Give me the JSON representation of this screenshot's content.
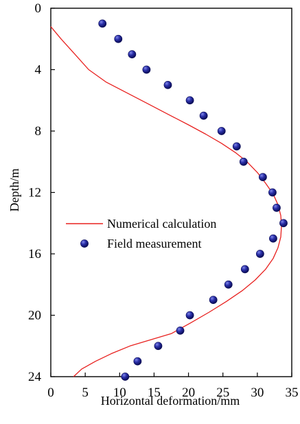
{
  "chart_data": {
    "type": "scatter",
    "xlabel": "Horizontal deformation/mm",
    "ylabel": "Depth/m",
    "xlim": [
      0,
      35
    ],
    "ylim": [
      24,
      0
    ],
    "y_axis_inverted": true,
    "xticks": [
      0,
      5,
      10,
      15,
      20,
      25,
      30,
      35
    ],
    "yticks": [
      0,
      4,
      8,
      12,
      16,
      20,
      24
    ],
    "grid": false,
    "legend": "center-left",
    "series": [
      {
        "name": "Numerical calculation",
        "kind": "line",
        "color": "#e8201e",
        "x": [
          0,
          1.5,
          3.5,
          5.5,
          8,
          11,
          14,
          17,
          20,
          22.5,
          24.8,
          26.8,
          28.5,
          30,
          31.2,
          32.3,
          33,
          33.4,
          33.5,
          33.4,
          33,
          32.3,
          31.2,
          29.7,
          27.8,
          25.5,
          23,
          20.3,
          17.5,
          14.5,
          11.5,
          8.8,
          6.5,
          4.5,
          3.3
        ],
        "y": [
          1.2,
          2,
          3,
          4,
          4.8,
          5.5,
          6.2,
          6.9,
          7.6,
          8.2,
          8.8,
          9.4,
          10,
          10.7,
          11.4,
          12.1,
          12.8,
          13.5,
          14.2,
          14.9,
          15.6,
          16.3,
          17,
          17.7,
          18.4,
          19.1,
          19.8,
          20.5,
          21.2,
          21.6,
          22,
          22.5,
          23,
          23.5,
          24
        ]
      },
      {
        "name": "Field measurement",
        "kind": "points",
        "color": "#1c1f8c",
        "x": [
          7.5,
          9.8,
          11.8,
          13.9,
          17,
          20.2,
          22.2,
          24.8,
          27,
          28,
          30.8,
          32.2,
          32.8,
          33.8,
          32.3,
          30.4,
          28.2,
          25.8,
          23.6,
          20.2,
          18.8,
          15.6,
          12.6,
          10.8
        ],
        "y": [
          1,
          2,
          3,
          4,
          5,
          6,
          7,
          8,
          9,
          10,
          11,
          12,
          13,
          14,
          15,
          16,
          17,
          18,
          19,
          20,
          21,
          22,
          23,
          24
        ]
      }
    ]
  }
}
